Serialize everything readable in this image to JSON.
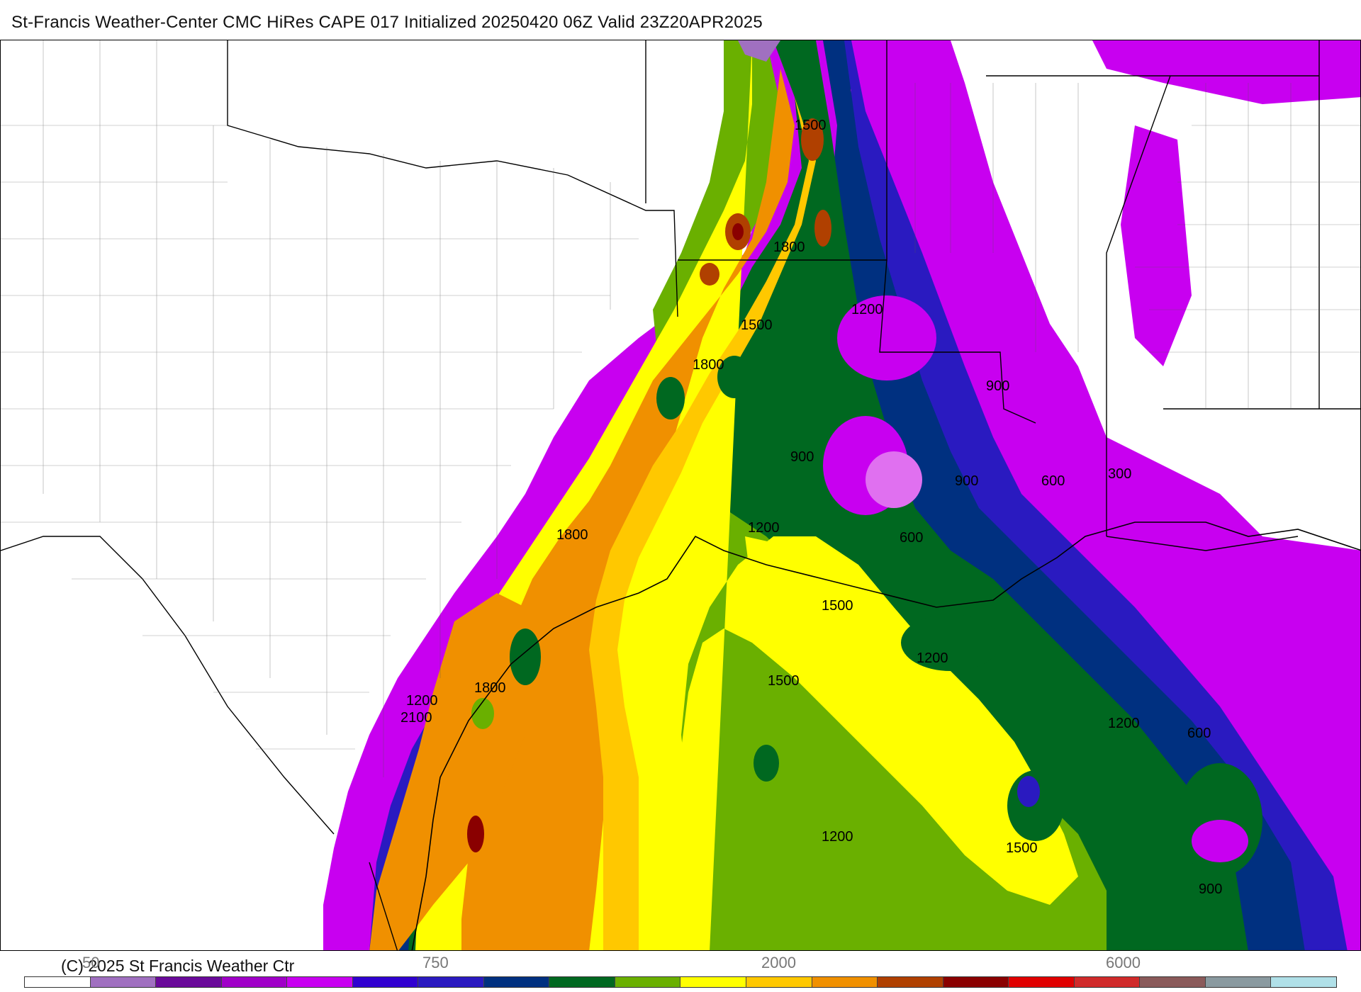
{
  "title": "St-Francis Weather-Center CMC HiRes CAPE  017 Initialized 20250420 06Z Valid 23Z20APR2025",
  "copyright": "(C) 2025 St Francis Weather Ctr",
  "colorbar": {
    "colors": [
      "#ffffff",
      "#a070c0",
      "#6a0a9a",
      "#a000c8",
      "#c800f0",
      "#3000d0",
      "#2a1ac0",
      "#003080",
      "#006820",
      "#6ab000",
      "#ffff00",
      "#ffc800",
      "#f09000",
      "#b04000",
      "#8a0000",
      "#e00000",
      "#d02a2a",
      "#8a5a5a",
      "#8a9aa0",
      "#b0e0e8"
    ],
    "tick_labels": [
      {
        "text": "50"
      },
      {
        "text": "750"
      },
      {
        "text": "2000"
      },
      {
        "text": "6000"
      }
    ]
  },
  "contour_labels": [
    "1500",
    "1800",
    "1200",
    "1500",
    "1800",
    "900",
    "900",
    "900",
    "600",
    "300",
    "1200",
    "600",
    "1800",
    "1500",
    "1500",
    "1200",
    "1200",
    "2100",
    "1800",
    "1200",
    "1500",
    "1200",
    "900",
    "600"
  ]
}
